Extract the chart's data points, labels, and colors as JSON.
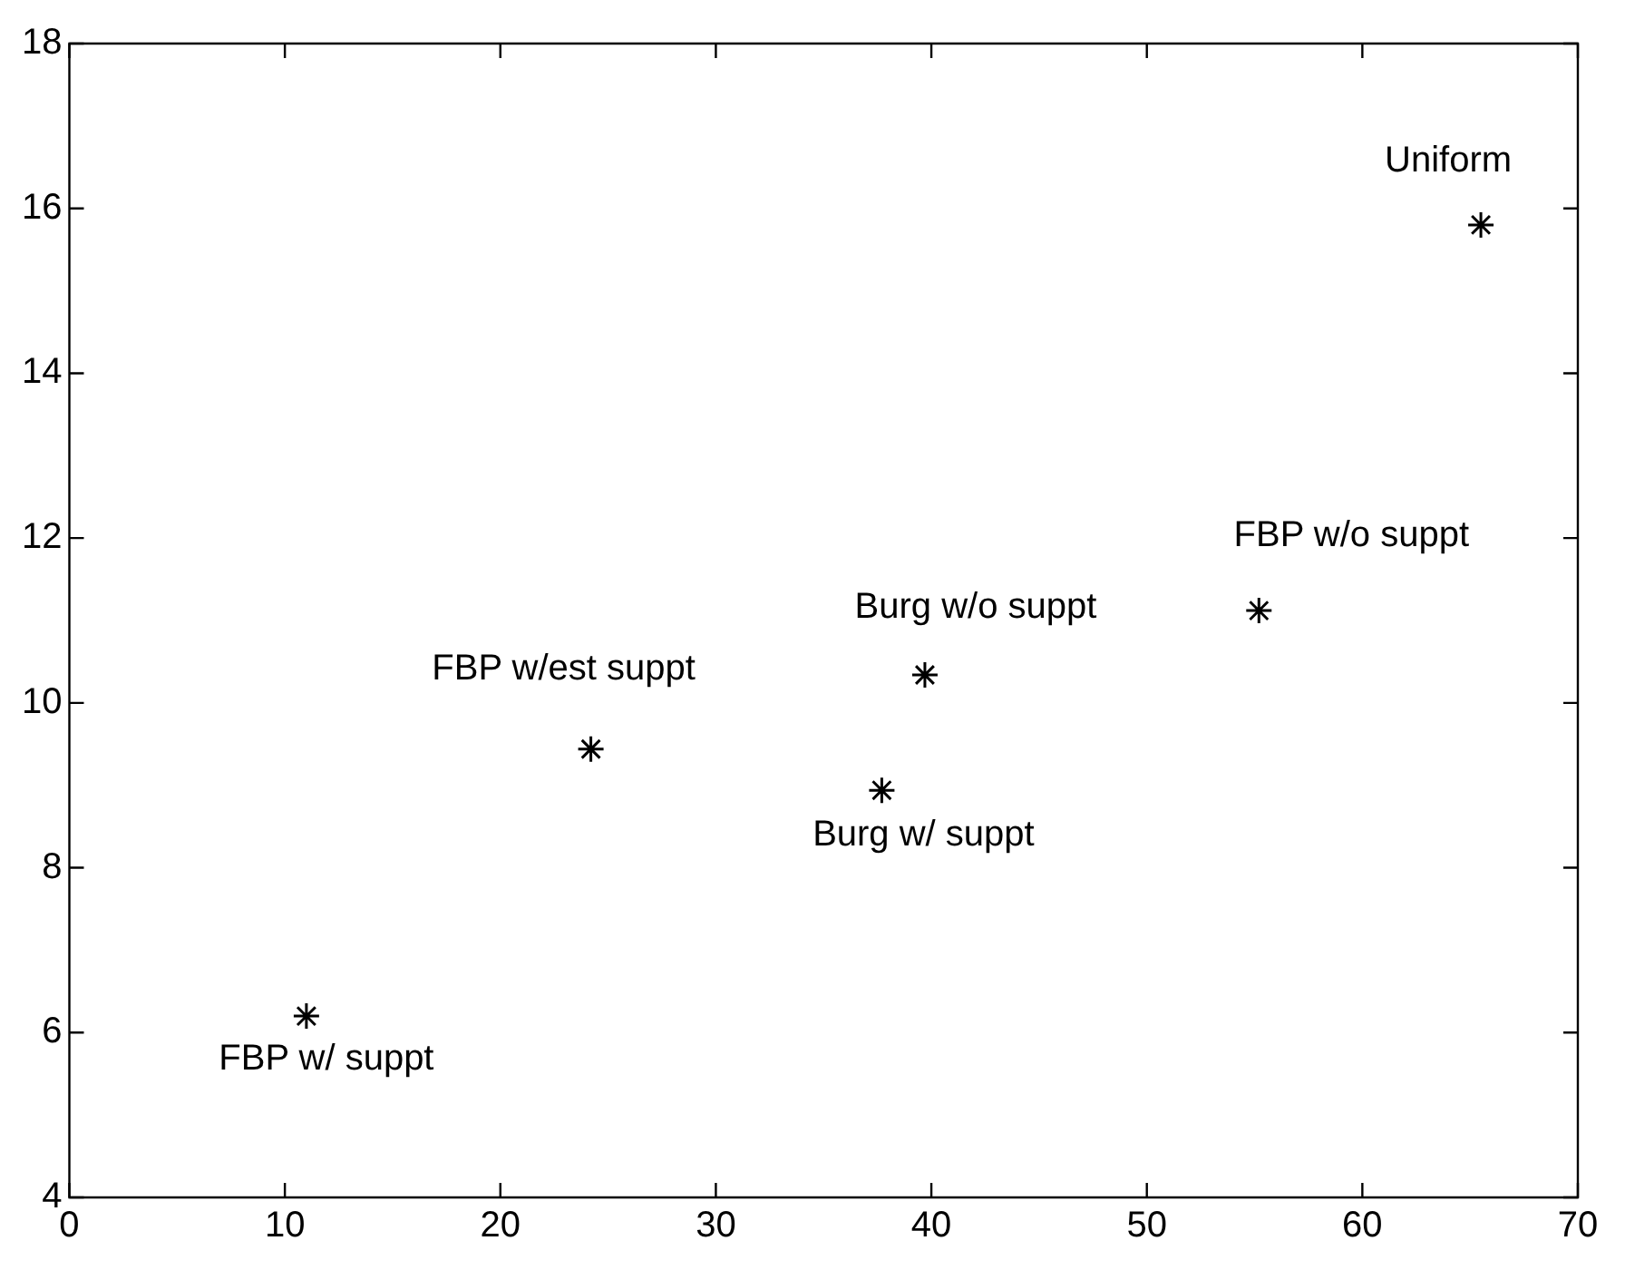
{
  "chart_data": {
    "type": "scatter",
    "x": [
      11.0,
      24.2,
      37.7,
      39.7,
      55.2,
      65.5
    ],
    "values": [
      6.2,
      9.44,
      8.94,
      10.34,
      11.12,
      15.8
    ],
    "color": "#000000",
    "marker": "cross",
    "xlim": [
      0,
      70
    ],
    "xticks": [
      0,
      10,
      20,
      30,
      40,
      50,
      60,
      70
    ],
    "ylim": [
      4,
      18
    ],
    "yticks": [
      4,
      6,
      8,
      10,
      12,
      14,
      16,
      18
    ],
    "grid": false,
    "legend": false,
    "annotations": [
      {
        "text": "FBP w/ suppt",
        "x": 11.0,
        "y": 6.2
      },
      {
        "text": "FBP w/est suppt",
        "x": 24.2,
        "y": 9.44
      },
      {
        "text": "Burg w/ suppt",
        "x": 37.7,
        "y": 8.94
      },
      {
        "text": "Burg w/o suppt",
        "x": 39.7,
        "y": 10.34
      },
      {
        "text": "FBP w/o suppt",
        "x": 55.2,
        "y": 11.12
      },
      {
        "text": "Uniform",
        "x": 65.5,
        "y": 15.8
      }
    ]
  }
}
